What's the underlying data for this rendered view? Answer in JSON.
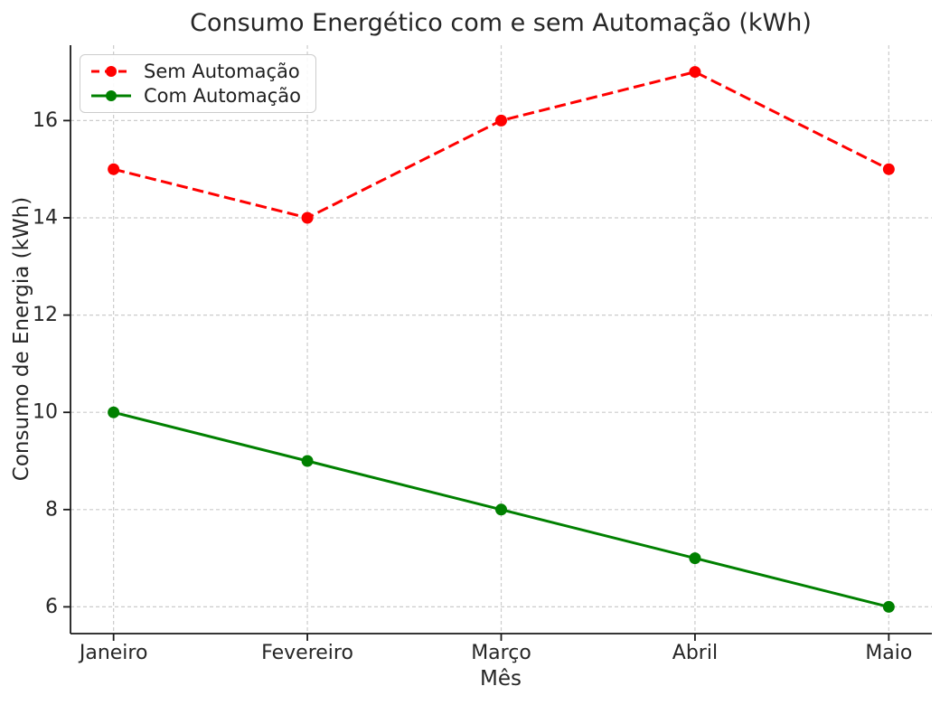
{
  "chart_data": {
    "type": "line",
    "title": "Consumo Energético com e sem Automação (kWh)",
    "xlabel": "Mês",
    "ylabel": "Consumo de Energia (kWh)",
    "categories": [
      "Janeiro",
      "Fevereiro",
      "Março",
      "Abril",
      "Maio"
    ],
    "series": [
      {
        "name": "Sem Automação",
        "values": [
          15,
          14,
          16,
          17,
          15
        ],
        "color": "#ff0000",
        "line_style": "dashed",
        "marker": "circle"
      },
      {
        "name": "Com Automação",
        "values": [
          10,
          9,
          8,
          7,
          6
        ],
        "color": "#008000",
        "line_style": "solid",
        "marker": "circle"
      }
    ],
    "yticks": [
      6,
      8,
      10,
      12,
      14,
      16
    ],
    "ylim": [
      5.45,
      17.55
    ],
    "grid": true,
    "grid_style": "dashed",
    "legend_position": "upper left",
    "colors": {
      "text": "#262626",
      "spine": "#1a1a1a",
      "grid": "#cccccc",
      "background": "#ffffff"
    }
  }
}
